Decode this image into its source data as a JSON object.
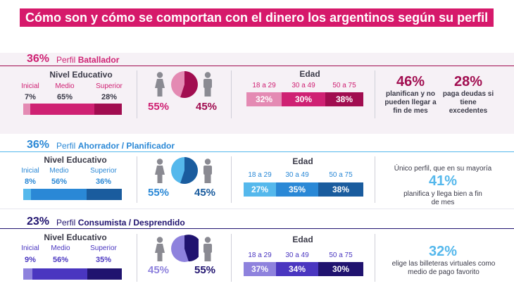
{
  "title": "Cómo son y cómo se comportan con el dinero los argentinos según su perfil",
  "labels": {
    "nivel": "Nivel Educativo",
    "edad": "Edad",
    "inicial": "Inicial",
    "medio": "Medio",
    "superior": "Superior",
    "age1": "18 a 29",
    "age2": "30 a 49",
    "age3": "50 a 75"
  },
  "colors": {
    "title_bg": "#d6196b",
    "batallador": [
      "#e48ab3",
      "#cf2173",
      "#a10d50"
    ],
    "ahorrador": [
      "#55b8ec",
      "#2a88d6",
      "#1a5c9e"
    ],
    "consumista": [
      "#8e82dd",
      "#4a36c0",
      "#20136f"
    ]
  },
  "profiles": {
    "p1": {
      "pct": "36%",
      "perfil": "Perfil ",
      "name": "Batallador",
      "edu": [
        "7%",
        "65%",
        "28%"
      ],
      "female": "55%",
      "male": "45%",
      "ages": [
        "32%",
        "30%",
        "38%"
      ],
      "stat1": "46%",
      "stat1_text": "planifican y no pueden llegar a fin de mes",
      "stat2": "28%",
      "stat2_text": "paga deudas si tiene excedentes"
    },
    "p2": {
      "pct": "36%",
      "perfil": "Perfil ",
      "name": "Ahorrador / Planificador",
      "edu": [
        "8%",
        "56%",
        "36%"
      ],
      "female": "55%",
      "male": "45%",
      "ages": [
        "27%",
        "35%",
        "38%"
      ],
      "stat_pre": "Único perfil, que en su mayoría",
      "stat": "41%",
      "stat_text": "planifica y llega bien a fin de mes"
    },
    "p3": {
      "pct": "23%",
      "perfil": "Perfil ",
      "name": "Consumista / Desprendido",
      "edu": [
        "9%",
        "56%",
        "35%"
      ],
      "female": "45%",
      "male": "55%",
      "ages": [
        "37%",
        "34%",
        "30%"
      ],
      "stat": "32%",
      "stat_text": "elige las billeteras virtuales como medio de pago favorito"
    }
  },
  "chart_data": [
    {
      "type": "bar",
      "title": "Perfil Batallador",
      "share_of_population": 36,
      "education": {
        "categories": [
          "Inicial",
          "Medio",
          "Superior"
        ],
        "values": [
          7,
          65,
          28
        ]
      },
      "gender": {
        "categories": [
          "female",
          "male"
        ],
        "values": [
          55,
          45
        ]
      },
      "age": {
        "categories": [
          "18 a 29",
          "30 a 49",
          "50 a 75"
        ],
        "values": [
          32,
          30,
          38
        ]
      }
    },
    {
      "type": "bar",
      "title": "Perfil Ahorrador / Planificador",
      "share_of_population": 36,
      "education": {
        "categories": [
          "Inicial",
          "Medio",
          "Superior"
        ],
        "values": [
          8,
          56,
          36
        ]
      },
      "gender": {
        "categories": [
          "female",
          "male"
        ],
        "values": [
          55,
          45
        ]
      },
      "age": {
        "categories": [
          "18 a 29",
          "30 a 49",
          "50 a 75"
        ],
        "values": [
          27,
          35,
          38
        ]
      }
    },
    {
      "type": "bar",
      "title": "Perfil Consumista / Desprendido",
      "share_of_population": 23,
      "education": {
        "categories": [
          "Inicial",
          "Medio",
          "Superior"
        ],
        "values": [
          9,
          56,
          35
        ]
      },
      "gender": {
        "categories": [
          "female",
          "male"
        ],
        "values": [
          45,
          55
        ]
      },
      "age": {
        "categories": [
          "18 a 29",
          "30 a 49",
          "50 a 75"
        ],
        "values": [
          37,
          34,
          30
        ]
      }
    }
  ]
}
